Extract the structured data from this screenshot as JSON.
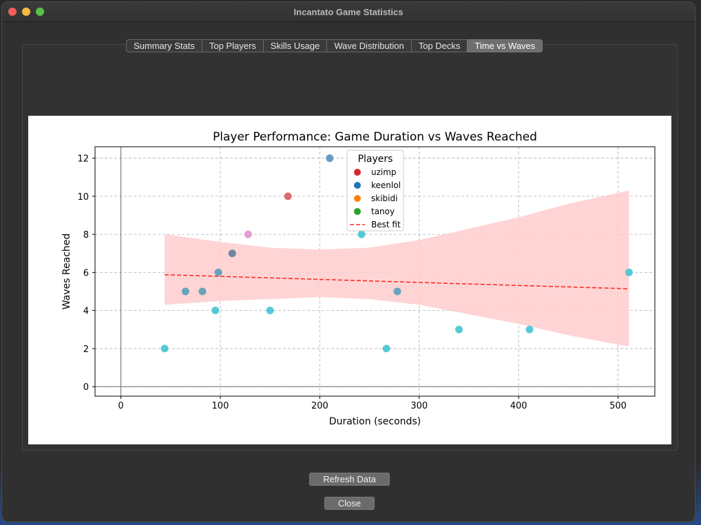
{
  "window": {
    "title": "Incantato Game Statistics"
  },
  "tabs": [
    "Summary Stats",
    "Top Players",
    "Skills Usage",
    "Wave Distribution",
    "Top Decks",
    "Time vs Waves"
  ],
  "active_tab": "Time vs Waves",
  "buttons": {
    "refresh": "Refresh Data",
    "close": "Close"
  },
  "colors": {
    "uzimp": "#d62728",
    "keenlol": "#1f77b4",
    "skibidi": "#ff7f0e",
    "tanoy": "#2ca02c",
    "cyan": "#17becf",
    "pink": "#e377c2",
    "best_fit": "#ff2b2b",
    "band": "#ffcccc"
  },
  "chart_data": {
    "type": "scatter",
    "title": "Player Performance: Game Duration vs Waves Reached",
    "xlabel": "Duration (seconds)",
    "ylabel": "Waves Reached",
    "xlim": [
      -26,
      537
    ],
    "ylim": [
      -0.5,
      12.6
    ],
    "xticks": [
      0,
      100,
      200,
      300,
      400,
      500
    ],
    "yticks": [
      0,
      2,
      4,
      6,
      8,
      10,
      12
    ],
    "grid": true,
    "legend": {
      "title": "Players",
      "placement": "top-center",
      "entries": [
        "uzimp",
        "keenlol",
        "skibidi",
        "tanoy",
        "Best fit"
      ]
    },
    "points": [
      {
        "x": 44,
        "y": 2,
        "c": "cyan"
      },
      {
        "x": 65,
        "y": 5,
        "c": "steel"
      },
      {
        "x": 82,
        "y": 5,
        "c": "steel"
      },
      {
        "x": 95,
        "y": 4,
        "c": "cyan"
      },
      {
        "x": 98,
        "y": 6,
        "c": "steel"
      },
      {
        "x": 112,
        "y": 7,
        "c": "slate"
      },
      {
        "x": 128,
        "y": 8,
        "c": "pink"
      },
      {
        "x": 150,
        "y": 4,
        "c": "cyan"
      },
      {
        "x": 168,
        "y": 10,
        "c": "red"
      },
      {
        "x": 210,
        "y": 12,
        "c": "blue"
      },
      {
        "x": 242,
        "y": 8,
        "c": "cyan"
      },
      {
        "x": 267,
        "y": 2,
        "c": "cyan"
      },
      {
        "x": 278,
        "y": 5,
        "c": "steel"
      },
      {
        "x": 340,
        "y": 3,
        "c": "cyan"
      },
      {
        "x": 411,
        "y": 3,
        "c": "cyan"
      },
      {
        "x": 511,
        "y": 6,
        "c": "cyan"
      }
    ],
    "best_fit": {
      "x": [
        44,
        511
      ],
      "y": [
        5.88,
        5.14
      ]
    },
    "band_upper": [
      [
        44,
        8.0
      ],
      [
        100,
        7.6
      ],
      [
        150,
        7.3
      ],
      [
        200,
        7.2
      ],
      [
        250,
        7.3
      ],
      [
        300,
        7.7
      ],
      [
        350,
        8.3
      ],
      [
        400,
        8.9
      ],
      [
        450,
        9.6
      ],
      [
        511,
        10.3
      ]
    ],
    "band_lower": [
      [
        44,
        4.3
      ],
      [
        100,
        4.5
      ],
      [
        150,
        4.6
      ],
      [
        200,
        4.7
      ],
      [
        250,
        4.6
      ],
      [
        300,
        4.3
      ],
      [
        350,
        3.8
      ],
      [
        400,
        3.3
      ],
      [
        450,
        2.7
      ],
      [
        511,
        2.1
      ]
    ]
  }
}
